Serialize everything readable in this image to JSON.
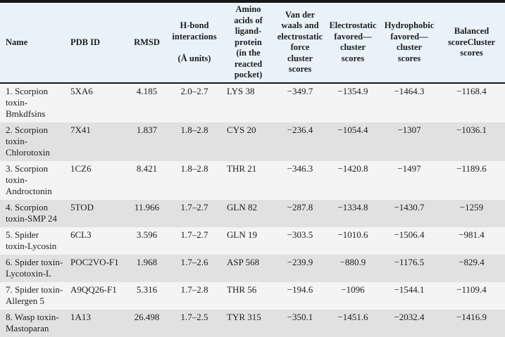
{
  "colors": {
    "header_background": "#e9f2f9",
    "row_odd_background": "#f4f4f4",
    "row_even_background": "#e1e1e1",
    "border": "#171717",
    "text": "#1d1d1d"
  },
  "table": {
    "columns": [
      "Name",
      "PDB ID",
      "RMSD",
      "H-bond\ninteractions\n\n(Å units)",
      "Amino\nacids of\nligand-\nprotein\n(in the\nreacted\npocket)",
      "Van der\nwaals and\nelectrostatic\nforce\ncluster\nscores",
      "Electrostatic\nfavored—\ncluster\nscores",
      "Hydrophobic\nfavored—\ncluster\nscores",
      "Balanced\nscoreCluster\nscores"
    ],
    "rows": [
      {
        "name": "1. Scorpion\ntoxin-\nBmkdfsins",
        "pdb_id": "5XA6",
        "rmsd": "4.185",
        "hbond_range": "2.0–2.7",
        "amino_acid": "LYS 38",
        "vdw_electrostatic_score": "−349.7",
        "electrostatic_cluster_score": "−1354.9",
        "hydrophobic_cluster_score": "−1464.3",
        "balanced_cluster_score": "−1168.4"
      },
      {
        "name": "2. Scorpion\ntoxin-\nChlorotoxin",
        "pdb_id": "7X41",
        "rmsd": "1.837",
        "hbond_range": "1.8–2.8",
        "amino_acid": "CYS 20",
        "vdw_electrostatic_score": "−236.4",
        "electrostatic_cluster_score": "−1054.4",
        "hydrophobic_cluster_score": "−1307",
        "balanced_cluster_score": "−1036.1"
      },
      {
        "name": "3. Scorpion\ntoxin-\nAndroctonin",
        "pdb_id": "1CZ6",
        "rmsd": "8.421",
        "hbond_range": "1.8–2.8",
        "amino_acid": "THR 21",
        "vdw_electrostatic_score": "−346.3",
        "electrostatic_cluster_score": "−1420.8",
        "hydrophobic_cluster_score": "−1497",
        "balanced_cluster_score": "−1189.6"
      },
      {
        "name": "4. Scorpion\ntoxin-SMP 24",
        "pdb_id": "5TOD",
        "rmsd": "11.966",
        "hbond_range": "1.7–2.7",
        "amino_acid": "GLN 82",
        "vdw_electrostatic_score": "−287.8",
        "electrostatic_cluster_score": "−1334.8",
        "hydrophobic_cluster_score": "−1430.7",
        "balanced_cluster_score": "−1259"
      },
      {
        "name": "5. Spider\ntoxin-Lycosin",
        "pdb_id": "6CL3",
        "rmsd": "3.596",
        "hbond_range": "1.7–2.7",
        "amino_acid": "GLN 19",
        "vdw_electrostatic_score": "−303.5",
        "electrostatic_cluster_score": "−1010.6",
        "hydrophobic_cluster_score": "−1506.4",
        "balanced_cluster_score": "−981.4"
      },
      {
        "name": "6. Spider toxin-\nLycotoxin-L",
        "pdb_id": "POC2VO-F1",
        "rmsd": "1.968",
        "hbond_range": "1.7–2.6",
        "amino_acid": "ASP 568",
        "vdw_electrostatic_score": "−239.9",
        "electrostatic_cluster_score": "−880.9",
        "hydrophobic_cluster_score": "−1176.5",
        "balanced_cluster_score": "−829.4"
      },
      {
        "name": "7. Spider toxin-\nAllergen 5",
        "pdb_id": "A9QQ26-F1",
        "rmsd": "5.316",
        "hbond_range": "1.7–2.8",
        "amino_acid": "THR 56",
        "vdw_electrostatic_score": "−194.6",
        "electrostatic_cluster_score": "−1096",
        "hydrophobic_cluster_score": "−1544.1",
        "balanced_cluster_score": "−1109.4"
      },
      {
        "name": "8. Wasp toxin-\nMastoparan",
        "pdb_id": "1A13",
        "rmsd": "26.498",
        "hbond_range": "1.7–2.5",
        "amino_acid": "TYR 315",
        "vdw_electrostatic_score": "−350.1",
        "electrostatic_cluster_score": "−1451.6",
        "hydrophobic_cluster_score": "−2032.4",
        "balanced_cluster_score": "−1416.9"
      }
    ]
  }
}
